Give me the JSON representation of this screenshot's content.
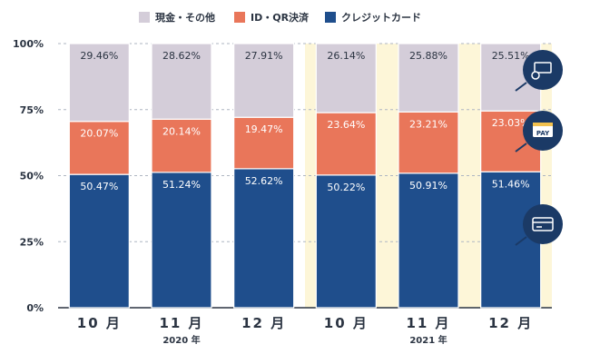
{
  "chart_data": {
    "type": "bar",
    "stacked": true,
    "categories": [
      "10 月",
      "11 月",
      "12 月",
      "10 月",
      "11 月",
      "12 月"
    ],
    "groups": [
      {
        "label": "2020 年",
        "start": 0,
        "end": 2
      },
      {
        "label": "2021 年",
        "start": 3,
        "end": 5
      }
    ],
    "series": [
      {
        "name": "クレジットカード",
        "color": "#1f4e8c",
        "values": [
          50.47,
          51.24,
          52.62,
          50.22,
          50.91,
          51.46
        ],
        "labels": [
          "50.47%",
          "51.24%",
          "52.62%",
          "50.22%",
          "50.91%",
          "51.46%"
        ]
      },
      {
        "name": "ID・QR決済",
        "color": "#e9765a",
        "values": [
          20.07,
          20.14,
          19.47,
          23.64,
          23.21,
          23.03
        ],
        "labels": [
          "20.07%",
          "20.14%",
          "19.47%",
          "23.64%",
          "23.21%",
          "23.03%"
        ]
      },
      {
        "name": "現金・その他",
        "color": "#d4cdd9",
        "values": [
          29.46,
          28.62,
          27.91,
          26.14,
          25.88,
          25.51
        ],
        "labels": [
          "29.46%",
          "28.62%",
          "27.91%",
          "26.14%",
          "25.88%",
          "25.51%"
        ]
      }
    ],
    "legend_order": [
      "現金・その他",
      "ID・QR決済",
      "クレジットカード"
    ],
    "legend_position": "top",
    "ylim": [
      0,
      100
    ],
    "yticks": [
      "0%",
      "25%",
      "50%",
      "75%",
      "100%"
    ],
    "highlight_background": "#fdf6d8",
    "highlight_categories": [
      3,
      4,
      5
    ],
    "side_icons": [
      "cash-card-icon",
      "pay-icon",
      "credit-card-icon"
    ]
  }
}
